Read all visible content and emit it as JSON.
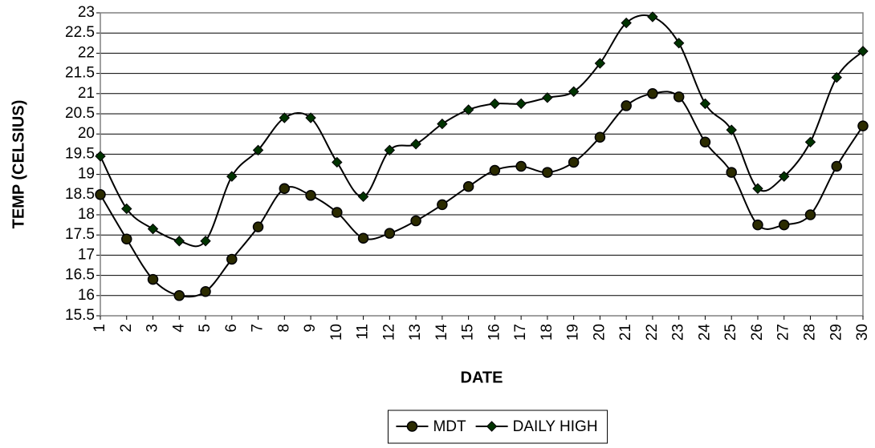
{
  "chart_data": {
    "type": "line",
    "x_label": "DATE",
    "y_label": "TEMP (CELSIUS)",
    "categories": [
      "1",
      "2",
      "3",
      "4",
      "5",
      "6",
      "7",
      "8",
      "9",
      "10",
      "11",
      "12",
      "13",
      "14",
      "15",
      "16",
      "17",
      "18",
      "19",
      "20",
      "21",
      "22",
      "23",
      "24",
      "25",
      "26",
      "27",
      "28",
      "29",
      "30"
    ],
    "series": [
      {
        "name": "MDT",
        "color": "#2b2b00",
        "marker": "circle",
        "values": [
          18.5,
          17.4,
          16.4,
          16.0,
          16.1,
          16.9,
          17.7,
          18.65,
          18.48,
          18.06,
          17.42,
          17.54,
          17.85,
          18.25,
          18.7,
          19.1,
          19.2,
          19.05,
          19.3,
          19.92,
          20.7,
          21.0,
          20.92,
          19.8,
          19.05,
          17.75,
          17.75,
          18.0,
          19.2,
          20.2
        ]
      },
      {
        "name": "DAILY HIGH",
        "color": "#003300",
        "marker": "diamond",
        "values": [
          19.45,
          18.15,
          17.65,
          17.35,
          17.35,
          18.95,
          19.6,
          20.4,
          20.4,
          19.3,
          18.45,
          19.6,
          19.75,
          20.25,
          20.6,
          20.75,
          20.75,
          20.9,
          21.05,
          21.75,
          22.75,
          22.9,
          22.25,
          20.75,
          20.1,
          18.65,
          18.95,
          19.8,
          21.4,
          22.05
        ]
      }
    ],
    "ylim": [
      15.5,
      23
    ],
    "yticks": [
      15.5,
      16,
      16.5,
      17,
      17.5,
      18,
      18.5,
      19,
      19.5,
      20,
      20.5,
      21,
      21.5,
      22,
      22.5,
      23
    ],
    "grid": true,
    "legend": "bottom",
    "smooth": true
  }
}
